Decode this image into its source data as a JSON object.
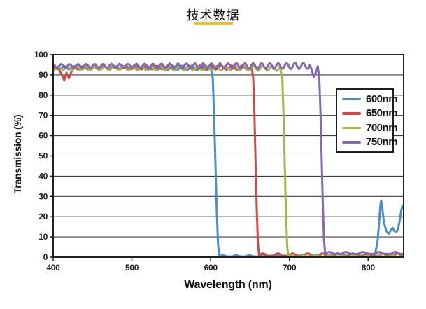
{
  "page": {
    "title": "技术数据",
    "title_underline_color": "#ffc000",
    "background_color": "#ffffff"
  },
  "chart_data": {
    "type": "line",
    "title": "",
    "xlabel": "Wavelength (nm)",
    "ylabel": "Transmission (%)",
    "xlim": [
      400,
      845
    ],
    "ylim": [
      0,
      100
    ],
    "xticks": [
      400,
      500,
      600,
      700,
      800
    ],
    "yticks": [
      0,
      10,
      20,
      30,
      40,
      50,
      60,
      70,
      80,
      90,
      100
    ],
    "grid": "horizontal-only",
    "grid_color": "#3c3c3c",
    "border_color": "#1f1f1f",
    "legend_position": "inside-right",
    "legend_entries": [
      "600nm",
      "650nm",
      "700nm",
      "750nm"
    ],
    "series": [
      {
        "name": "600nm",
        "color": "#4e8ccb",
        "passband_level": 93.5,
        "ripple_amp": [
          0.8,
          1.6
        ],
        "ripple_period": 12.5,
        "ripple_phase": 0.8,
        "edge_center": 606,
        "edge_width": 10,
        "stopband_level": 0.3,
        "stopband_ripple": 0.7,
        "stopband_period": 17,
        "extra_points": [
          [
            800,
            0.4
          ],
          [
            805,
            0.7
          ],
          [
            809,
            2
          ],
          [
            812,
            8
          ],
          [
            814,
            18
          ],
          [
            815.5,
            26
          ],
          [
            816.5,
            28
          ],
          [
            818,
            24
          ],
          [
            820,
            17
          ],
          [
            823,
            13
          ],
          [
            826,
            11.5
          ],
          [
            829,
            13.5
          ],
          [
            831,
            14.5
          ],
          [
            833,
            13
          ],
          [
            836,
            12.5
          ],
          [
            838,
            14
          ],
          [
            840,
            18
          ],
          [
            842,
            23
          ],
          [
            843.5,
            25.5
          ],
          [
            845,
            24
          ]
        ]
      },
      {
        "name": "650nm",
        "color": "#d04a45",
        "passband_level": 93.6,
        "ripple_amp": [
          0.7,
          1.4
        ],
        "ripple_period": 13.5,
        "ripple_phase": 2.9,
        "edge_center": 657,
        "edge_width": 9,
        "stopband_level": 0.7,
        "stopband_ripple": 1.2,
        "stopband_period": 19,
        "extra_points": [
          [
            407,
            93
          ],
          [
            411,
            90
          ],
          [
            414,
            87.3
          ],
          [
            417,
            91
          ],
          [
            420,
            88.3
          ],
          [
            424,
            92.3
          ]
        ]
      },
      {
        "name": "700nm",
        "color": "#9cba48",
        "passband_level": 93.3,
        "ripple_amp": [
          0.8,
          1.5
        ],
        "ripple_period": 11.8,
        "ripple_phase": 4.4,
        "edge_center": 694,
        "edge_width": 9,
        "stopband_level": 0.25,
        "stopband_ripple": 0.5,
        "stopband_period": 16,
        "extra_points": []
      },
      {
        "name": "750nm",
        "color": "#8667b1",
        "passband_level": 94.4,
        "ripple_amp": [
          0.9,
          1.9
        ],
        "ripple_period": 10.6,
        "ripple_phase": 1.8,
        "edge_center": 741,
        "edge_width": 9,
        "stopband_level": 1.6,
        "stopband_ripple": 1.0,
        "stopband_period": 21,
        "extra_points": [
          [
            727,
            94
          ],
          [
            731,
            89
          ],
          [
            734,
            91.5
          ]
        ]
      }
    ]
  }
}
